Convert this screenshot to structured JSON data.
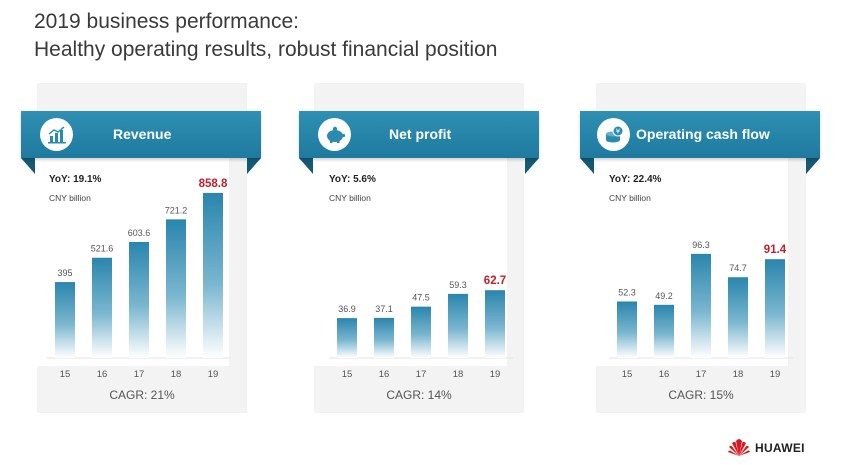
{
  "title": {
    "line1": "2019 business performance:",
    "line2": "Healthy operating results, robust financial position"
  },
  "brand": {
    "name": "HUAWEI"
  },
  "colors": {
    "ribbon": "#2a8bb0",
    "highlight": "#c0202a",
    "bar_top": "#2a85ad",
    "bar_bottom": "#ffffff"
  },
  "chart_data": [
    {
      "type": "bar",
      "title": "Revenue",
      "icon": "chart-icon",
      "yoy": "YoY: 19.1%",
      "unit": "CNY billion",
      "categories": [
        "15",
        "16",
        "17",
        "18",
        "19"
      ],
      "values": [
        395,
        521.6,
        603.6,
        721.2,
        858.8
      ],
      "labels": [
        "395",
        "521.6",
        "603.6",
        "721.2",
        "858.8"
      ],
      "highlight_index": 4,
      "cagr": "CAGR: 21%",
      "ylim": [
        0,
        900
      ]
    },
    {
      "type": "bar",
      "title": "Net profit",
      "icon": "piggy-bank-icon",
      "yoy": "YoY: 5.6%",
      "unit": "CNY billion",
      "categories": [
        "15",
        "16",
        "17",
        "18",
        "19"
      ],
      "values": [
        36.9,
        37.1,
        47.5,
        59.3,
        62.7
      ],
      "labels": [
        "36.9",
        "37.1",
        "47.5",
        "59.3",
        "62.7"
      ],
      "highlight_index": 4,
      "cagr": "CAGR: 14%",
      "ylim": [
        0,
        160
      ]
    },
    {
      "type": "bar",
      "title": "Operating cash flow",
      "icon": "coin-icon",
      "yoy": "YoY: 22.4%",
      "unit": "CNY billion",
      "categories": [
        "15",
        "16",
        "17",
        "18",
        "19"
      ],
      "values": [
        52.3,
        49.2,
        96.3,
        74.7,
        91.4
      ],
      "labels": [
        "52.3",
        "49.2",
        "96.3",
        "74.7",
        "91.4"
      ],
      "highlight_index": 4,
      "cagr": "CAGR: 15%",
      "ylim": [
        0,
        160
      ]
    }
  ]
}
